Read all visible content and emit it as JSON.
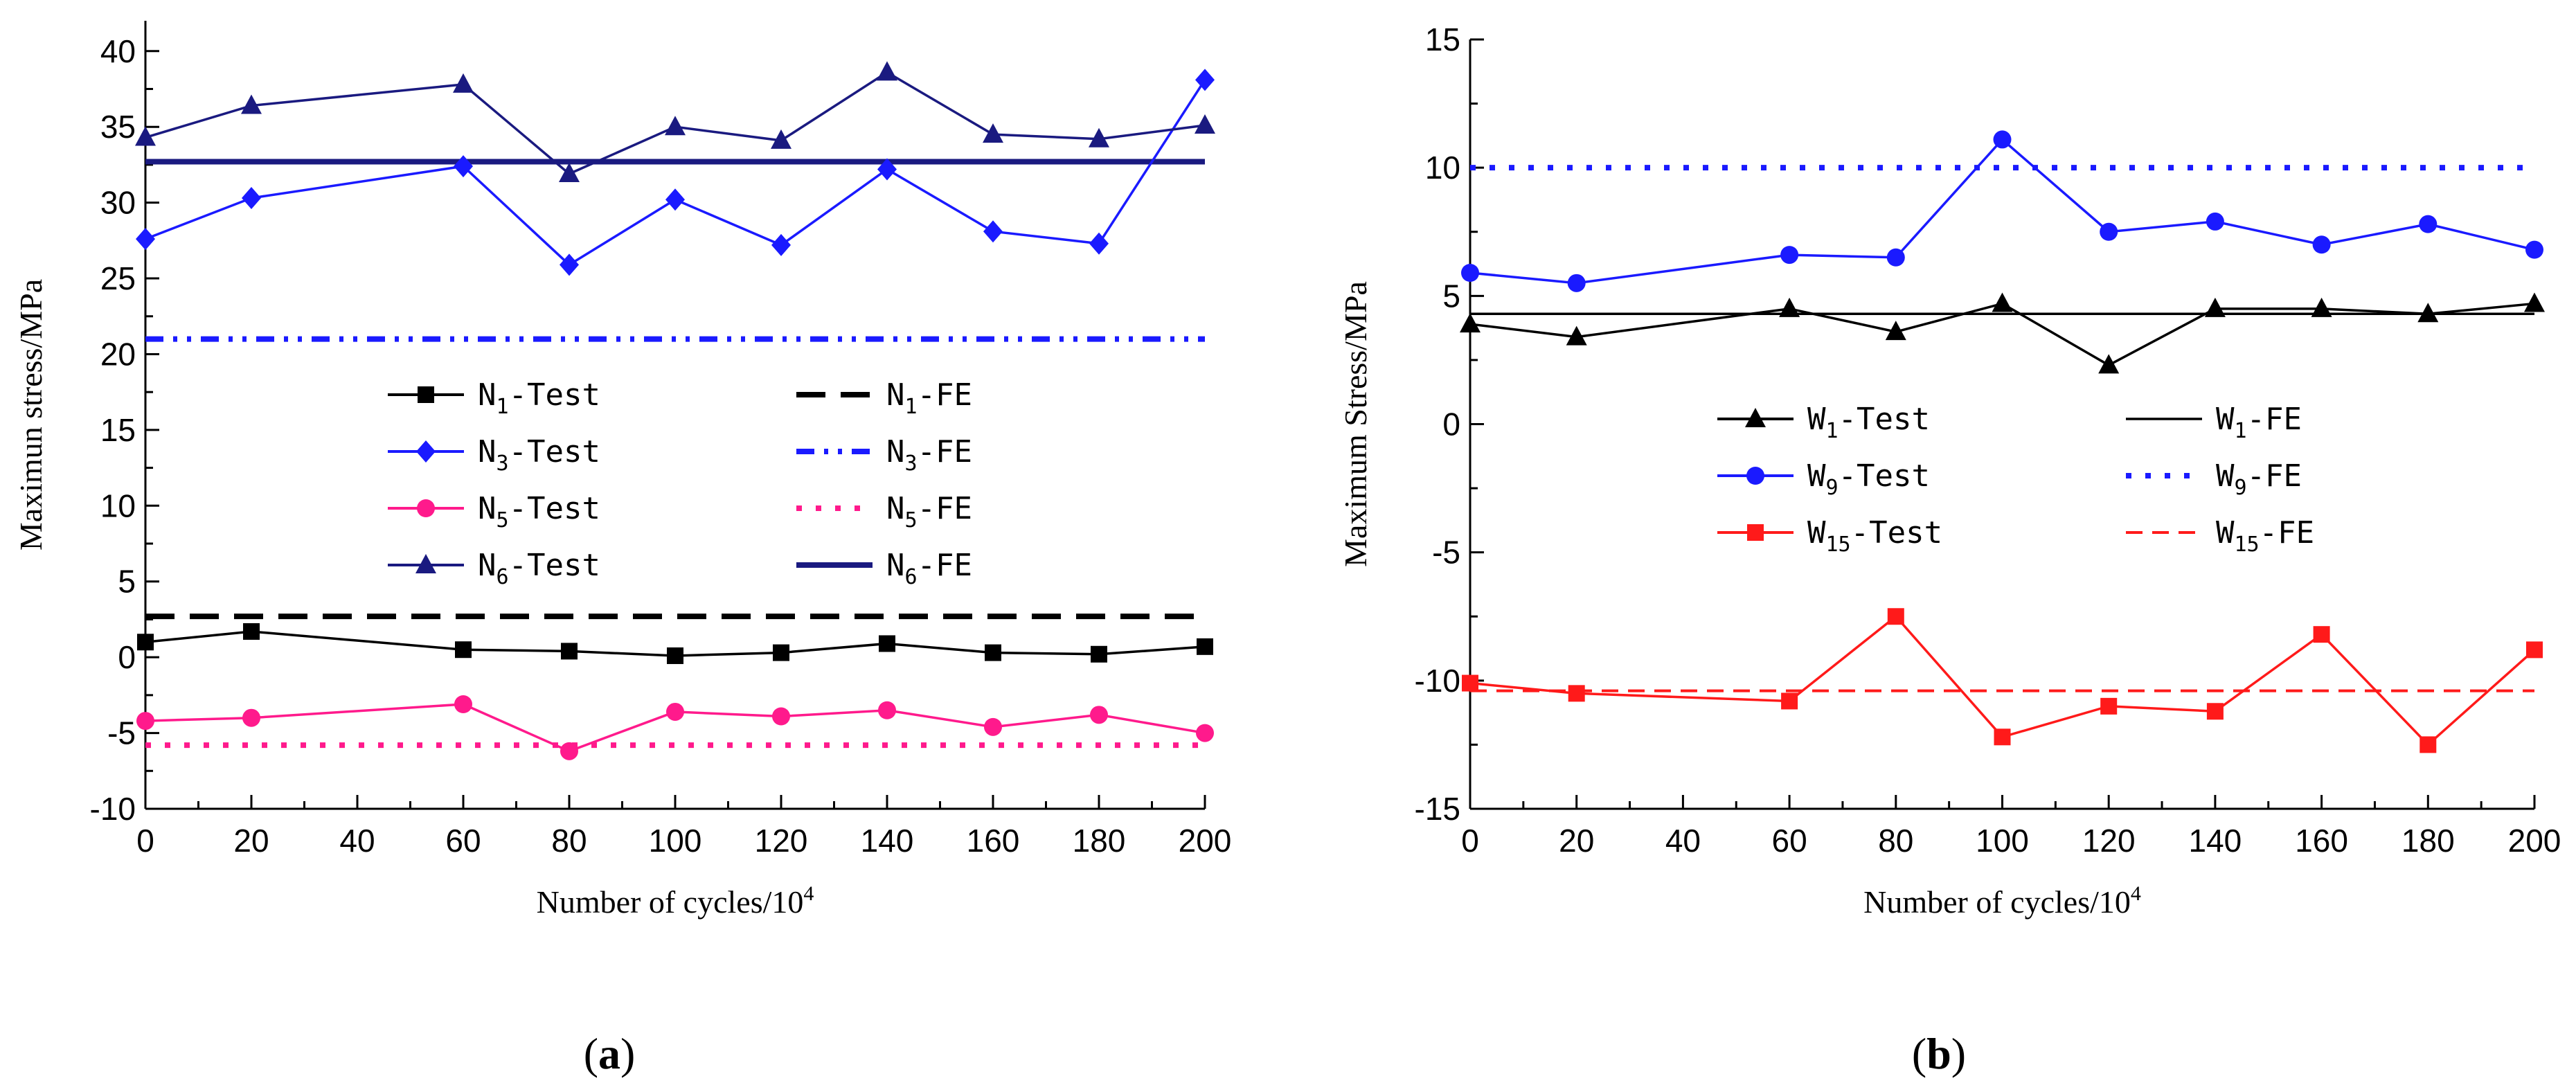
{
  "panels": [
    {
      "id": "a",
      "panel_label": "a",
      "chart_data": {
        "type": "line",
        "xlabel": "Number of cycles/10",
        "xlabel_sup": "4",
        "ylabel": "Maximun stress/MPa",
        "xlim": [
          0,
          200
        ],
        "ylim": [
          -10,
          42
        ],
        "xticks": [
          0,
          20,
          40,
          60,
          80,
          100,
          120,
          140,
          160,
          180,
          200
        ],
        "yticks": [
          -10,
          -5,
          0,
          5,
          10,
          15,
          20,
          25,
          30,
          35,
          40
        ],
        "x": [
          0,
          20,
          60,
          80,
          100,
          120,
          140,
          160,
          180,
          200
        ],
        "series": [
          {
            "name": "N1-Test",
            "label_main": "N",
            "label_sub": "1",
            "label_suffix": "-Test",
            "color": "#000000",
            "marker": "square",
            "values": [
              1.0,
              1.7,
              0.5,
              0.4,
              0.1,
              0.3,
              0.9,
              0.3,
              0.2,
              0.7
            ]
          },
          {
            "name": "N3-Test",
            "label_main": "N",
            "label_sub": "3",
            "label_suffix": "-Test",
            "color": "#1a1aff",
            "marker": "diamond",
            "values": [
              27.6,
              30.3,
              32.4,
              25.9,
              30.2,
              27.2,
              32.2,
              28.1,
              27.3,
              38.1
            ]
          },
          {
            "name": "N5-Test",
            "label_main": "N",
            "label_sub": "5",
            "label_suffix": "-Test",
            "color": "#ff1a8c",
            "marker": "circle",
            "values": [
              -4.2,
              -4.0,
              -3.1,
              -6.2,
              -3.6,
              -3.9,
              -3.5,
              -4.6,
              -3.8,
              -5.0
            ]
          },
          {
            "name": "N6-Test",
            "label_main": "N",
            "label_sub": "6",
            "label_suffix": "-Test",
            "color": "#1a1a80",
            "marker": "triangle",
            "values": [
              34.3,
              36.4,
              37.8,
              31.9,
              35.0,
              34.1,
              38.6,
              34.5,
              34.2,
              35.1
            ]
          }
        ],
        "reference_lines": [
          {
            "name": "N1-FE",
            "label_main": "N",
            "label_sub": "1",
            "label_suffix": "-FE",
            "color": "#000000",
            "style": "dash",
            "value": 2.7
          },
          {
            "name": "N3-FE",
            "label_main": "N",
            "label_sub": "3",
            "label_suffix": "-FE",
            "color": "#1a1aff",
            "style": "dashdotdot",
            "value": 21.0
          },
          {
            "name": "N5-FE",
            "label_main": "N",
            "label_sub": "5",
            "label_suffix": "-FE",
            "color": "#ff1a8c",
            "style": "dot",
            "value": -5.8
          },
          {
            "name": "N6-FE",
            "label_main": "N",
            "label_sub": "6",
            "label_suffix": "-FE",
            "color": "#1a1a80",
            "style": "solid-thick",
            "value": 32.7
          }
        ],
        "legend_position": "center"
      }
    },
    {
      "id": "b",
      "panel_label": "b",
      "chart_data": {
        "type": "line",
        "xlabel": "Number of cycles/10",
        "xlabel_sup": "4",
        "ylabel": "Maximum Stress/MPa",
        "xlim": [
          0,
          200
        ],
        "ylim": [
          -15,
          15
        ],
        "xticks": [
          0,
          20,
          40,
          60,
          80,
          100,
          120,
          140,
          160,
          180,
          200
        ],
        "yticks": [
          -15,
          -10,
          -5,
          0,
          5,
          10,
          15
        ],
        "x": [
          0,
          20,
          60,
          80,
          100,
          120,
          140,
          160,
          180,
          200
        ],
        "series": [
          {
            "name": "W1-Test",
            "label_main": "W",
            "label_sub": "1",
            "label_suffix": "-Test",
            "color": "#000000",
            "marker": "triangle",
            "values": [
              3.9,
              3.4,
              4.5,
              3.6,
              4.7,
              2.3,
              4.5,
              4.5,
              4.3,
              4.7
            ]
          },
          {
            "name": "W9-Test",
            "label_main": "W",
            "label_sub": "9",
            "label_suffix": "-Test",
            "color": "#1a1aff",
            "marker": "circle",
            "values": [
              5.9,
              5.5,
              6.6,
              6.5,
              11.1,
              7.5,
              7.9,
              7.0,
              7.8,
              6.8
            ]
          },
          {
            "name": "W15-Test",
            "label_main": "W",
            "label_sub": "15",
            "label_suffix": "-Test",
            "color": "#ff1a1a",
            "marker": "square",
            "values": [
              -10.1,
              -10.5,
              -10.8,
              -7.5,
              -12.2,
              -11.0,
              -11.2,
              -8.2,
              -12.5,
              -8.8
            ]
          }
        ],
        "reference_lines": [
          {
            "name": "W1-FE",
            "label_main": "W",
            "label_sub": "1",
            "label_suffix": "-FE",
            "color": "#000000",
            "style": "solid-thin",
            "value": 4.3
          },
          {
            "name": "W9-FE",
            "label_main": "W",
            "label_sub": "9",
            "label_suffix": "-FE",
            "color": "#1a1aff",
            "style": "dot",
            "value": 10.0
          },
          {
            "name": "W15-FE",
            "label_main": "W",
            "label_sub": "15",
            "label_suffix": "-FE",
            "color": "#ff1a1a",
            "style": "dash-thin",
            "value": -10.4
          }
        ],
        "legend_position": "center"
      }
    }
  ]
}
